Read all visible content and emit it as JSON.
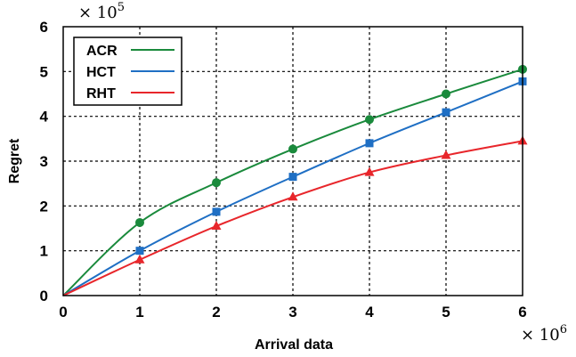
{
  "chart_data": {
    "type": "line",
    "title": "",
    "xlabel": "Arrival data",
    "ylabel": "Regret",
    "x_scale_label": "× 10^6",
    "y_scale_label": "× 10^5",
    "xlim": [
      0,
      6
    ],
    "ylim": [
      0,
      6
    ],
    "xticks": [
      "0",
      "1",
      "2",
      "3",
      "4",
      "5",
      "6"
    ],
    "yticks": [
      "0",
      "1",
      "2",
      "3",
      "4",
      "5",
      "6"
    ],
    "grid": true,
    "legend_position": "top-left",
    "x": [
      0,
      1,
      2,
      3,
      4,
      5,
      6
    ],
    "series": [
      {
        "name": "ACR",
        "color": "#1a8a3c",
        "marker": "circle",
        "values": [
          0,
          1.63,
          2.52,
          3.27,
          3.93,
          4.5,
          5.05
        ]
      },
      {
        "name": "HCT",
        "color": "#1f6fc4",
        "marker": "square",
        "values": [
          0,
          1.0,
          1.87,
          2.65,
          3.4,
          4.09,
          4.78
        ]
      },
      {
        "name": "RHT",
        "color": "#e8262b",
        "marker": "triangle",
        "values": [
          0,
          0.8,
          1.55,
          2.2,
          2.75,
          3.13,
          3.45
        ]
      }
    ]
  }
}
